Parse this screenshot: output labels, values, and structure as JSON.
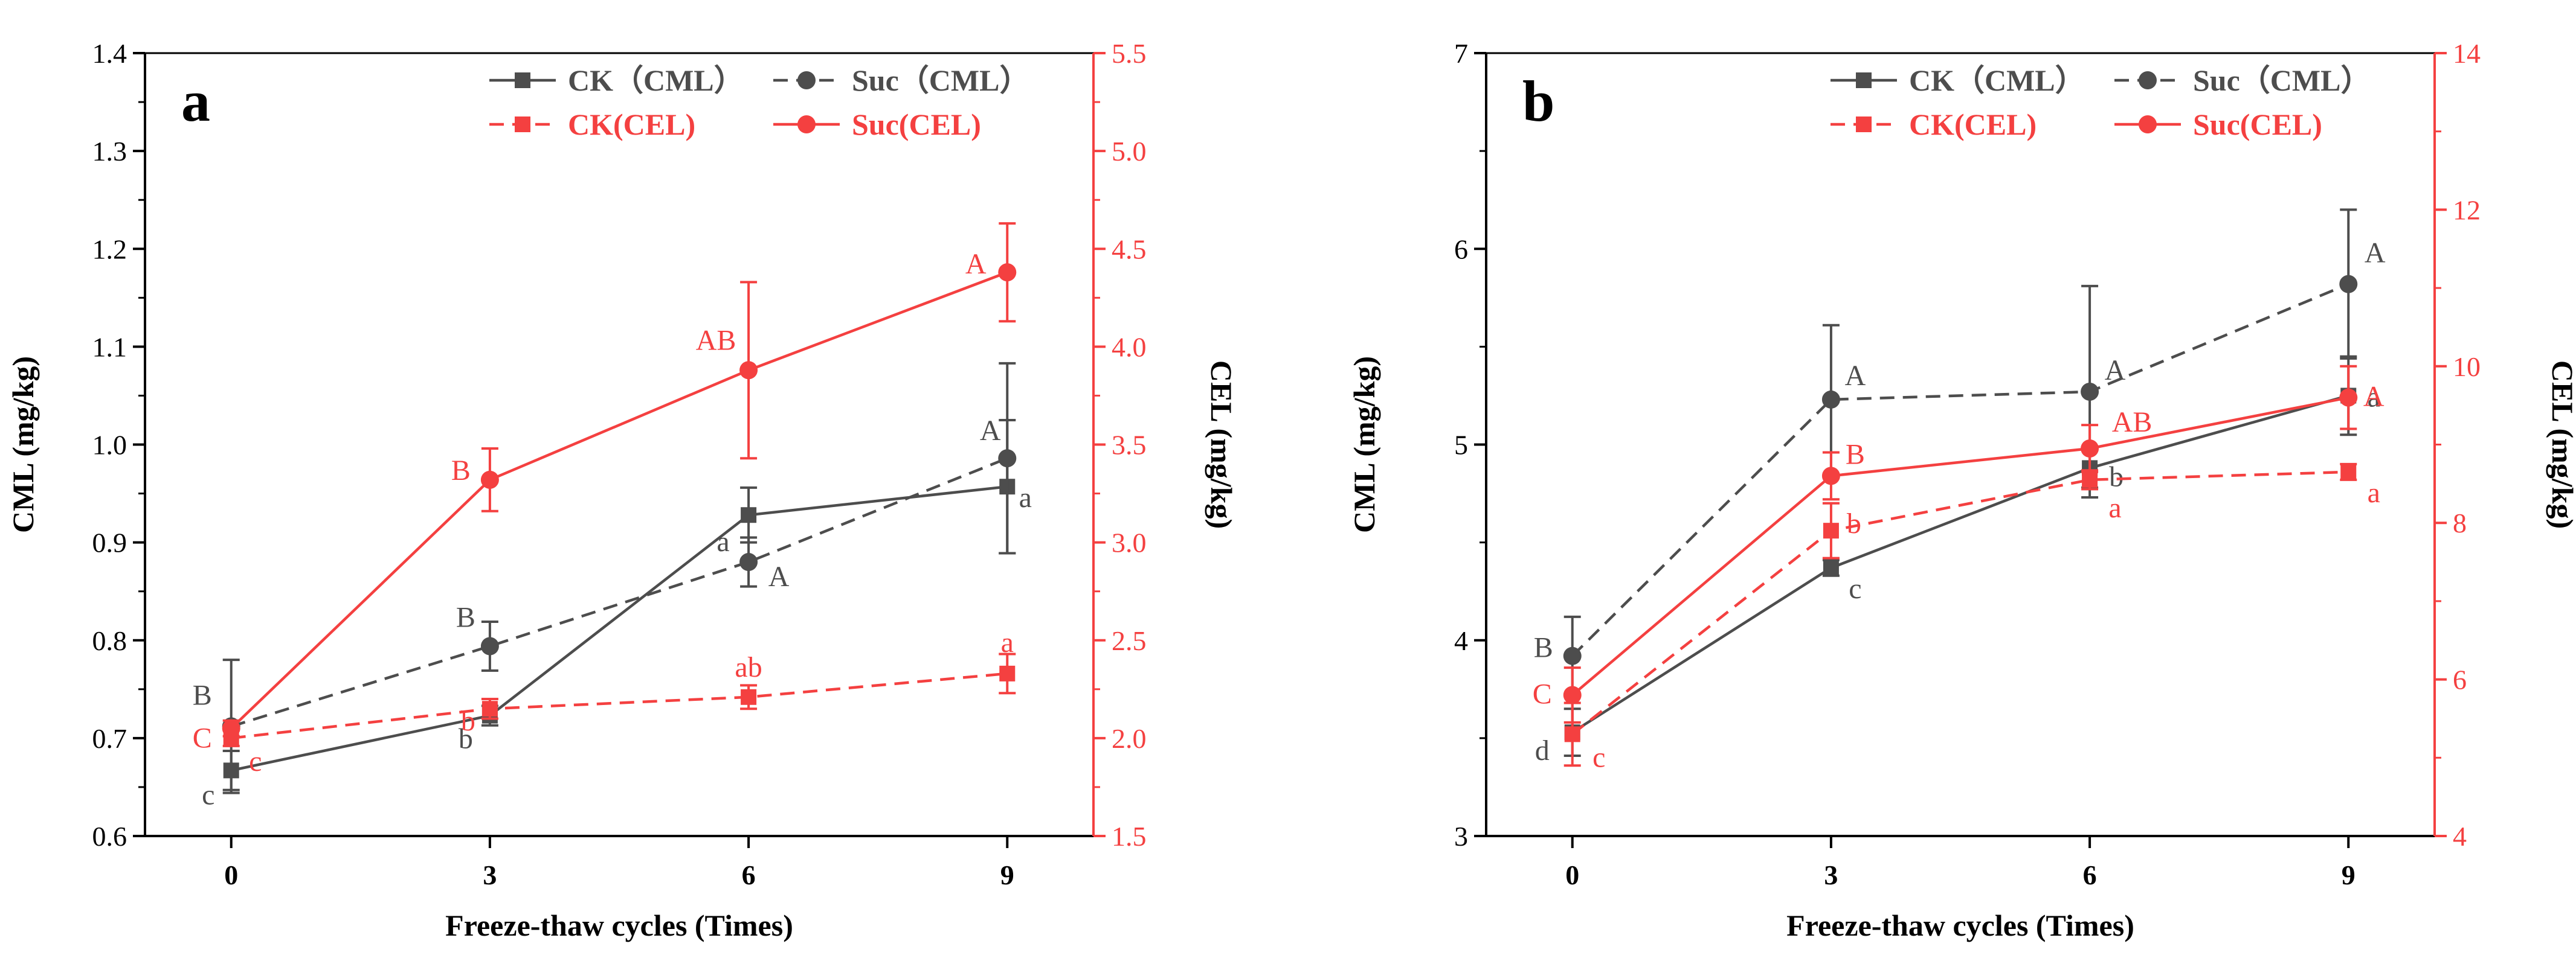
{
  "colors": {
    "cml": "#4d4d4d",
    "cel": "#f44040",
    "axis": "#000000"
  },
  "chart_data": [
    {
      "type": "line",
      "panel_label": "a",
      "xlabel": "Freeze-thaw cycles (Times)",
      "ylabel_left": "CML (mg/kg)",
      "ylabel_right": "CEL (mg/kg)",
      "x": [
        0,
        3,
        6,
        9
      ],
      "x_ticks": [
        "0",
        "3",
        "6",
        "9"
      ],
      "xlim": [
        -1,
        10
      ],
      "ylim_left": [
        0.6,
        1.4
      ],
      "ylim_right": [
        1.5,
        5.5
      ],
      "y_ticks_left": [
        "0.6",
        "0.7",
        "0.8",
        "0.9",
        "1.0",
        "1.1",
        "1.2",
        "1.3",
        "1.4"
      ],
      "y_ticks_right": [
        "1.5",
        "2.0",
        "2.5",
        "3.0",
        "3.5",
        "4.0",
        "4.5",
        "5.0",
        "5.5"
      ],
      "legend": [
        "CK（CML）",
        "Suc（CML）",
        "CK(CEL)",
        "Suc(CEL)"
      ],
      "series": [
        {
          "name": "CK（CML）",
          "axis": "left",
          "marker": "square",
          "dash": "solid",
          "color_key": "cml",
          "values": [
            0.667,
            0.723,
            0.928,
            0.957
          ],
          "errors": [
            0.02,
            0.01,
            0.028,
            0.068
          ],
          "labels": [
            "c",
            "b",
            "a",
            "a"
          ]
        },
        {
          "name": "Suc（CML）",
          "axis": "left",
          "marker": "circle",
          "dash": "dashed",
          "color_key": "cml",
          "values": [
            0.712,
            0.794,
            0.88,
            0.986
          ],
          "errors": [
            0.068,
            0.025,
            0.025,
            0.097
          ],
          "labels": [
            "B",
            "B",
            "A",
            "A"
          ]
        },
        {
          "name": "CK(CEL)",
          "axis": "right",
          "marker": "square",
          "dash": "dashed",
          "color_key": "cel",
          "values": [
            2.0,
            2.15,
            2.21,
            2.33
          ],
          "errors": [
            0.04,
            0.05,
            0.06,
            0.1
          ],
          "labels": [
            "c",
            "b",
            "ab",
            "a"
          ]
        },
        {
          "name": "Suc(CEL)",
          "axis": "right",
          "marker": "circle",
          "dash": "solid",
          "color_key": "cel",
          "values": [
            2.05,
            3.32,
            3.88,
            4.38
          ],
          "errors": [
            0.04,
            0.16,
            0.45,
            0.25
          ],
          "labels": [
            "C",
            "B",
            "AB",
            "A"
          ]
        }
      ]
    },
    {
      "type": "line",
      "panel_label": "b",
      "xlabel": "Freeze-thaw cycles (Times)",
      "ylabel_left": "CML (mg/kg)",
      "ylabel_right": "CEL (mg/kg)",
      "x": [
        0,
        3,
        6,
        9
      ],
      "x_ticks": [
        "0",
        "3",
        "6",
        "9"
      ],
      "xlim": [
        -1,
        10
      ],
      "ylim_left": [
        3,
        7
      ],
      "ylim_right": [
        4,
        14
      ],
      "y_ticks_left": [
        "3",
        "4",
        "5",
        "6",
        "7"
      ],
      "y_ticks_right": [
        "4",
        "6",
        "8",
        "10",
        "12",
        "14"
      ],
      "legend": [
        "CK（CML）",
        "Suc（CML）",
        "CK(CEL)",
        "Suc(CEL)"
      ],
      "series": [
        {
          "name": "CK（CML）",
          "axis": "left",
          "marker": "square",
          "dash": "solid",
          "color_key": "cml",
          "values": [
            3.53,
            4.37,
            4.88,
            5.25
          ],
          "errors": [
            0.12,
            0.04,
            0.1,
            0.2
          ],
          "labels": [
            "d",
            "c",
            "b",
            "a"
          ]
        },
        {
          "name": "Suc（CML）",
          "axis": "left",
          "marker": "circle",
          "dash": "dashed",
          "color_key": "cml",
          "values": [
            3.92,
            5.23,
            5.27,
            5.82
          ],
          "errors": [
            0.2,
            0.38,
            0.54,
            0.38
          ],
          "labels": [
            "B",
            "A",
            "A",
            "A"
          ]
        },
        {
          "name": "CK(CEL)",
          "axis": "right",
          "marker": "square",
          "dash": "dashed",
          "color_key": "cel",
          "values": [
            5.3,
            7.9,
            8.55,
            8.65
          ],
          "errors": [
            0.4,
            0.35,
            0.12,
            0.1
          ],
          "labels": [
            "c",
            "b",
            "a",
            "a"
          ]
        },
        {
          "name": "Suc(CEL)",
          "axis": "right",
          "marker": "circle",
          "dash": "solid",
          "color_key": "cel",
          "values": [
            5.8,
            8.6,
            8.95,
            9.6
          ],
          "errors": [
            0.35,
            0.3,
            0.3,
            0.4
          ],
          "labels": [
            "C",
            "B",
            "AB",
            "A"
          ]
        }
      ]
    }
  ]
}
